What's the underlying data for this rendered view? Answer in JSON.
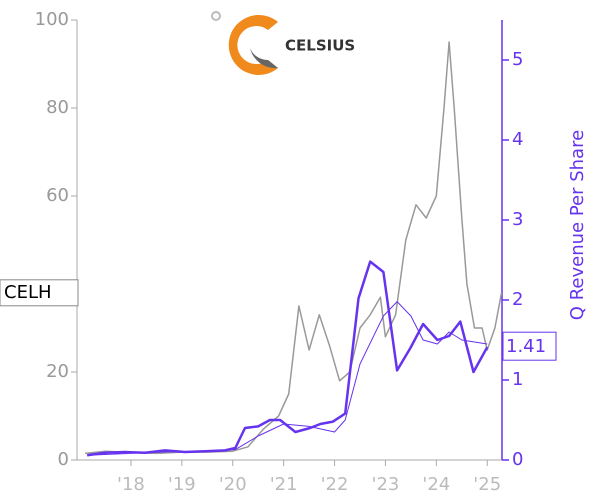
{
  "chart_data": {
    "type": "line",
    "logo_text": "CELSIUS",
    "ticker": "CELH",
    "y2label": "Q Revenue Per Share",
    "xlim": [
      2016.94,
      2025.29
    ],
    "xticks": [
      {
        "value": 2018,
        "label": "'18"
      },
      {
        "value": 2019,
        "label": "'19"
      },
      {
        "value": 2020,
        "label": "'20"
      },
      {
        "value": 2021,
        "label": "'21"
      },
      {
        "value": 2022,
        "label": "'22"
      },
      {
        "value": 2023,
        "label": "'23"
      },
      {
        "value": 2024,
        "label": "'24"
      },
      {
        "value": 2025,
        "label": "'25"
      }
    ],
    "ylim": [
      0,
      100
    ],
    "yticks": [
      0,
      20,
      60,
      80,
      100
    ],
    "y2lim": [
      0,
      5.5
    ],
    "y2ticks": [
      0,
      1,
      2,
      3,
      4,
      5
    ],
    "series": [
      {
        "color": "#999999",
        "width": 1.5,
        "axis": "y",
        "x": [
          2017.1,
          2017.5,
          2018,
          2018.5,
          2019,
          2019.5,
          2020,
          2020.3,
          2020.6,
          2020.9,
          2021.1,
          2021.3,
          2021.5,
          2021.7,
          2021.9,
          2022.1,
          2022.3,
          2022.5,
          2022.7,
          2022.9,
          2023.0,
          2023.2,
          2023.4,
          2023.6,
          2023.8,
          2024.0,
          2024.15,
          2024.25,
          2024.35,
          2024.5,
          2024.6,
          2024.75,
          2024.9,
          2025.0,
          2025.15,
          2025.28
        ],
        "values": [
          1.5,
          2,
          1.7,
          1.5,
          1.8,
          1.8,
          2,
          3,
          7,
          10,
          15,
          35,
          25,
          33,
          26,
          18,
          20,
          30,
          33,
          37,
          28,
          33,
          50,
          58,
          55,
          60,
          80,
          95,
          80,
          55,
          40,
          30,
          30,
          25,
          30,
          38
        ]
      },
      {
        "color": "#6633ee",
        "width": 2.5,
        "axis": "y2",
        "x": [
          2017.14,
          2017.49,
          2017.88,
          2018.28,
          2018.67,
          2019.06,
          2019.46,
          2019.85,
          2020.05,
          2020.24,
          2020.5,
          2020.73,
          2020.93,
          2021.23,
          2021.52,
          2021.72,
          2021.97,
          2022.21,
          2022.47,
          2022.7,
          2022.96,
          2023.23,
          2023.49,
          2023.74,
          2024.02,
          2024.25,
          2024.47,
          2024.73,
          2025.0
        ],
        "values": [
          0.06,
          0.09,
          0.1,
          0.09,
          0.12,
          0.1,
          0.11,
          0.12,
          0.15,
          0.4,
          0.42,
          0.5,
          0.5,
          0.35,
          0.4,
          0.45,
          0.48,
          0.58,
          2.02,
          2.48,
          2.35,
          1.12,
          1.4,
          1.7,
          1.5,
          1.55,
          1.73,
          1.1,
          1.41
        ]
      },
      {
        "color": "#6633ee",
        "width": 1,
        "axis": "y2",
        "x": [
          2017.14,
          2017.88,
          2018.67,
          2019.46,
          2020.05,
          2020.5,
          2021.0,
          2021.5,
          2022.0,
          2022.21,
          2022.5,
          2022.96,
          2023.23,
          2023.5,
          2023.74,
          2024.02,
          2024.25,
          2024.5,
          2025.0
        ],
        "values": [
          0.06,
          0.08,
          0.1,
          0.11,
          0.13,
          0.3,
          0.45,
          0.42,
          0.35,
          0.5,
          1.2,
          1.8,
          1.98,
          1.8,
          1.5,
          1.45,
          1.6,
          1.5,
          1.45
        ]
      }
    ]
  }
}
